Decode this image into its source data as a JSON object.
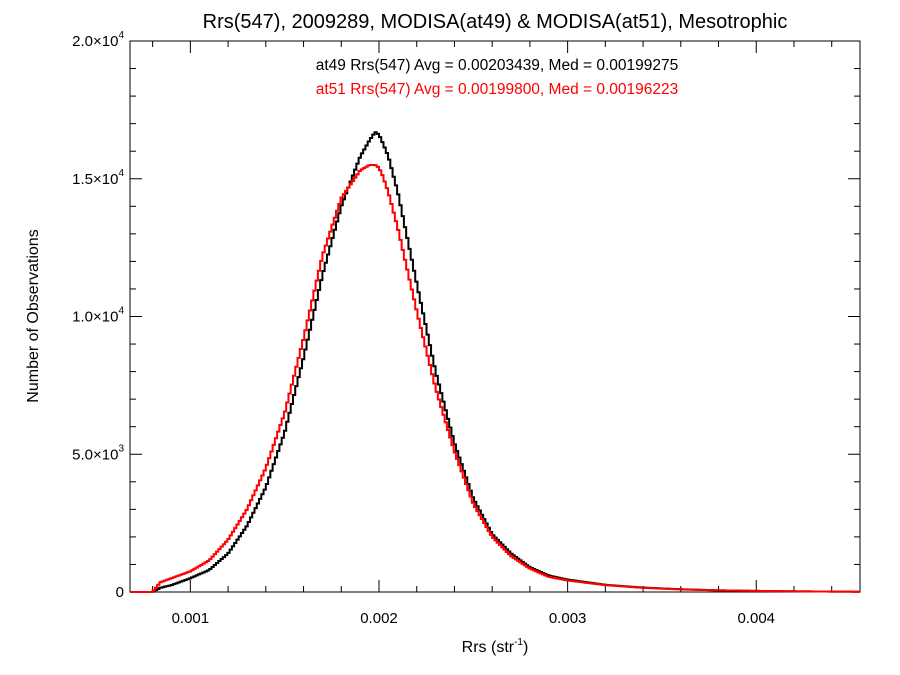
{
  "chart_data": {
    "type": "line",
    "title": "Rrs(547), 2009289, MODISA(at49) & MODISA(at51), Mesotrophic",
    "xlabel": "Rrs (str",
    "xlabel_sup": "-1",
    "xlabel_end": ")",
    "ylabel": "Number of Observations",
    "xlim": [
      0.00068,
      0.00455
    ],
    "ylim": [
      0,
      20000
    ],
    "x_ticks": [
      {
        "value": 0.001,
        "label": "0.001"
      },
      {
        "value": 0.002,
        "label": "0.002"
      },
      {
        "value": 0.003,
        "label": "0.003"
      },
      {
        "value": 0.004,
        "label": "0.004"
      }
    ],
    "y_ticks": [
      {
        "value": 0,
        "label": "0",
        "sup": ""
      },
      {
        "value": 5000,
        "label": "5.0×10",
        "sup": "3"
      },
      {
        "value": 10000,
        "label": "1.0×10",
        "sup": "4"
      },
      {
        "value": 15000,
        "label": "1.5×10",
        "sup": "4"
      },
      {
        "value": 20000,
        "label": "2.0×10",
        "sup": "4"
      }
    ],
    "x_minor_step": 0.0002,
    "y_minor_step": 1000,
    "series": [
      {
        "name": "at49",
        "color": "#000000",
        "stats": "at49 Rrs(547) Avg = 0.00203439, Med = 0.00199275",
        "x": [
          0.00068,
          0.0008,
          0.00084,
          0.0009,
          0.001,
          0.0011,
          0.0012,
          0.0013,
          0.0014,
          0.0015,
          0.0016,
          0.0017,
          0.0018,
          0.0019,
          0.00195,
          0.00198,
          0.002,
          0.00202,
          0.00205,
          0.0021,
          0.0022,
          0.0023,
          0.0024,
          0.0025,
          0.0026,
          0.0027,
          0.0028,
          0.0029,
          0.003,
          0.0032,
          0.0034,
          0.0036,
          0.0038,
          0.004,
          0.0042,
          0.0044,
          0.00455
        ],
        "values": [
          0,
          0,
          150,
          250,
          500,
          800,
          1400,
          2400,
          3800,
          5800,
          8500,
          11500,
          14000,
          15800,
          16400,
          16700,
          16600,
          16300,
          15800,
          14500,
          11200,
          8000,
          5400,
          3400,
          2100,
          1400,
          900,
          600,
          450,
          260,
          160,
          100,
          60,
          40,
          25,
          15,
          10
        ]
      },
      {
        "name": "at51",
        "color": "#ff0000",
        "stats": "at51 Rrs(547) Avg = 0.00199800, Med = 0.00196223",
        "x": [
          0.00068,
          0.0008,
          0.00084,
          0.0009,
          0.001,
          0.0011,
          0.0012,
          0.0013,
          0.0014,
          0.0015,
          0.0016,
          0.0017,
          0.0018,
          0.0019,
          0.00195,
          0.00198,
          0.002,
          0.00202,
          0.00205,
          0.0021,
          0.0022,
          0.0023,
          0.0024,
          0.0025,
          0.0026,
          0.0027,
          0.0028,
          0.0029,
          0.003,
          0.0032,
          0.0034,
          0.0036,
          0.0038,
          0.004,
          0.0042,
          0.0044,
          0.00455
        ],
        "values": [
          0,
          0,
          350,
          500,
          750,
          1150,
          1900,
          3000,
          4500,
          6500,
          9200,
          12200,
          14300,
          15300,
          15500,
          15500,
          15400,
          15100,
          14500,
          13200,
          10200,
          7400,
          5100,
          3200,
          2000,
          1300,
          850,
          550,
          420,
          250,
          150,
          95,
          60,
          40,
          25,
          15,
          10
        ]
      }
    ]
  }
}
